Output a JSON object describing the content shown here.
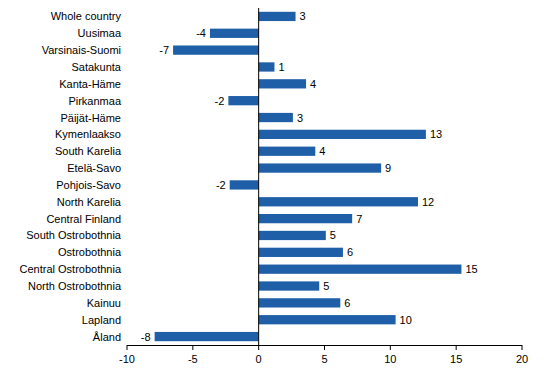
{
  "chart_data": {
    "type": "bar",
    "orientation": "horizontal",
    "categories": [
      "Whole country",
      "Uusimaa",
      "Varsinais-Suomi",
      "Satakunta",
      "Kanta-Häme",
      "Pirkanmaa",
      "Päijät-Häme",
      "Kymenlaakso",
      "South Karelia",
      "Etelä-Savo",
      "Pohjois-Savo",
      "North Karelia",
      "Central Finland",
      "South Ostrobothnia",
      "Ostrobothnia",
      "Central Ostrobothnia",
      "North Ostrobothnia",
      "Kainuu",
      "Lapland",
      "Åland"
    ],
    "values": [
      2.8,
      -3.7,
      -6.5,
      1.2,
      3.6,
      -2.3,
      2.6,
      12.7,
      4.3,
      9.3,
      -2.2,
      12.1,
      7.1,
      5.1,
      6.4,
      15.4,
      4.6,
      6.2,
      10.4,
      -7.9
    ],
    "value_labels": [
      "3",
      "-4",
      "-7",
      "1",
      "4",
      "-2",
      "3",
      "13",
      "4",
      "9",
      "-2",
      "12",
      "7",
      "5",
      "6",
      "15",
      "5",
      "6",
      "10",
      "-8"
    ],
    "data_labels": true,
    "color": "#1f5fa8",
    "xlim": [
      -10,
      20
    ],
    "xticks": [
      -10,
      -5,
      0,
      5,
      10,
      15,
      20
    ],
    "grid": false
  }
}
